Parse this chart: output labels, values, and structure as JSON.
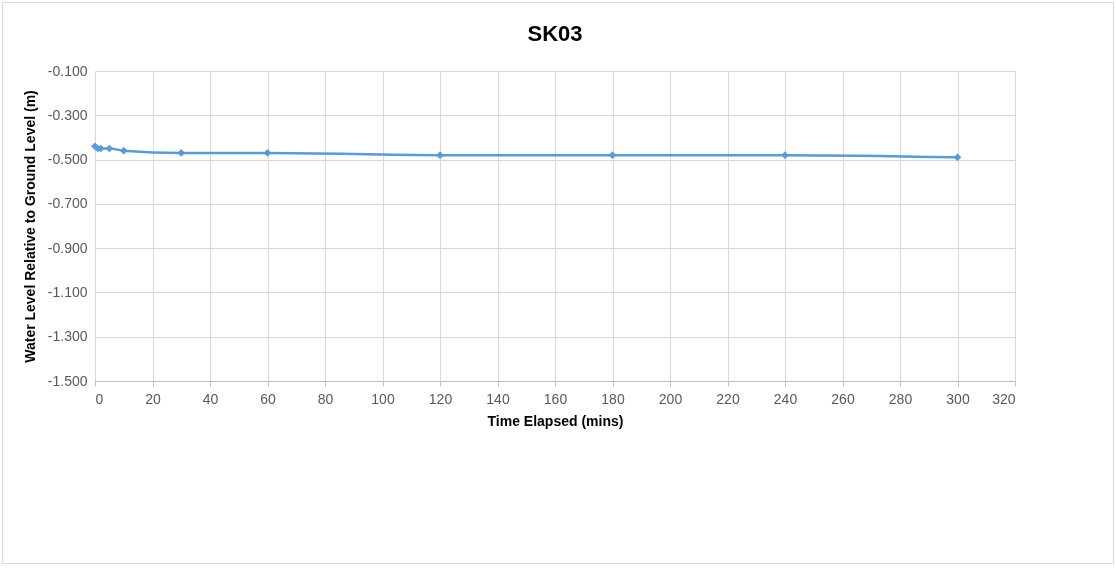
{
  "chart_data": {
    "type": "line",
    "title": "SK03",
    "xlabel": "Time Elapsed (mins)",
    "ylabel": "Water Level Relative to Ground Level (m)",
    "x": [
      0,
      1,
      2,
      5,
      10,
      30,
      60,
      120,
      180,
      240,
      300
    ],
    "series": [
      {
        "color": "#5b9bd5",
        "values": [
          -0.44,
          -0.45,
          -0.45,
          -0.45,
          -0.46,
          -0.47,
          -0.47,
          -0.48,
          -0.48,
          -0.48,
          -0.49
        ]
      }
    ],
    "xlim": [
      0,
      320
    ],
    "xticks": [
      0,
      20,
      40,
      60,
      80,
      100,
      120,
      140,
      160,
      180,
      200,
      220,
      240,
      260,
      280,
      300,
      320
    ],
    "ylim": [
      -1.5,
      -0.1
    ],
    "yticks": [
      {
        "value": -1.5,
        "label": "-1.500"
      },
      {
        "value": -1.3,
        "label": "-1.300"
      },
      {
        "value": -1.1,
        "label": "-1.100"
      },
      {
        "value": -0.9,
        "label": "-0.900"
      },
      {
        "value": -0.7,
        "label": "-0.700"
      },
      {
        "value": -0.5,
        "label": "-0.500"
      },
      {
        "value": -0.3,
        "label": "-0.300"
      },
      {
        "value": -0.1,
        "label": "-0.100"
      }
    ],
    "grid": true,
    "marker": "diamond",
    "line_style": "solid"
  }
}
